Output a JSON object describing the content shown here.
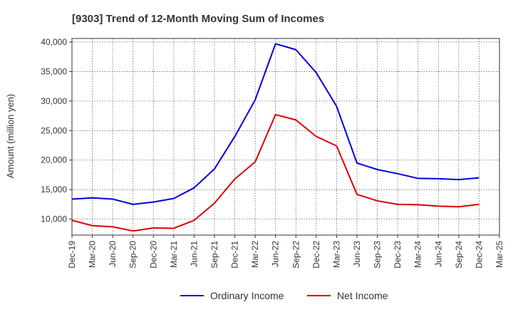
{
  "chart_data": {
    "type": "line",
    "title": "[9303]  Trend of 12-Month Moving Sum of Incomes",
    "xlabel": "",
    "ylabel": "Amount (million yen)",
    "ylim": [
      7300,
      40600
    ],
    "yticks": [
      10000,
      15000,
      20000,
      25000,
      30000,
      35000,
      40000
    ],
    "ytick_labels": [
      "10,000",
      "15,000",
      "20,000",
      "25,000",
      "30,000",
      "35,000",
      "40,000"
    ],
    "x": [
      "Dec-19",
      "Mar-20",
      "Jun-20",
      "Sep-20",
      "Dec-20",
      "Mar-21",
      "Jun-21",
      "Sep-21",
      "Dec-21",
      "Mar-22",
      "Jun-22",
      "Sep-22",
      "Dec-22",
      "Mar-23",
      "Jun-23",
      "Sep-23",
      "Dec-23",
      "Mar-24",
      "Jun-24",
      "Sep-24",
      "Dec-24",
      "Mar-25"
    ],
    "grid": true,
    "legend": "bottom",
    "series": [
      {
        "name": "Ordinary Income",
        "color": "#0000dd",
        "values": [
          13400,
          13600,
          13400,
          12500,
          12900,
          13500,
          15300,
          18500,
          24000,
          30200,
          39700,
          38700,
          34800,
          29100,
          19500,
          18400,
          17700,
          16900,
          16850,
          16700,
          17000,
          null
        ]
      },
      {
        "name": "Net Income",
        "color": "#dd0000",
        "values": [
          9800,
          8900,
          8700,
          8000,
          8500,
          8450,
          9800,
          12700,
          16800,
          19700,
          27700,
          26800,
          24000,
          22400,
          14200,
          13100,
          12500,
          12450,
          12200,
          12100,
          12500,
          null
        ]
      }
    ]
  }
}
